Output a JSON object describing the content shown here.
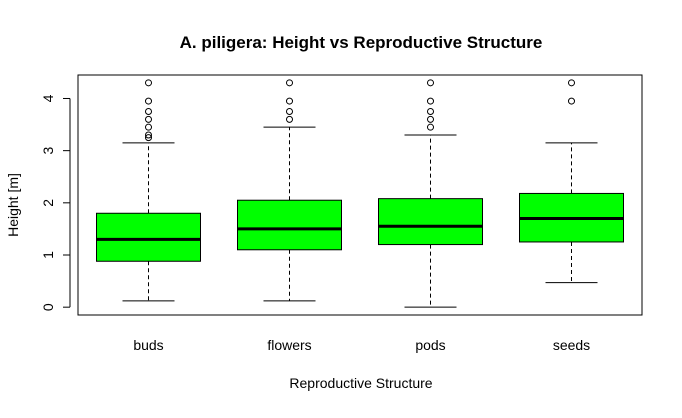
{
  "chart_data": {
    "type": "boxplot",
    "title": "A. piligera: Height vs Reproductive Structure",
    "xlabel": "Reproductive Structure",
    "ylabel": "Height [m]",
    "ylim": [
      -0.15,
      4.45
    ],
    "yticks": [
      "0",
      "1",
      "2",
      "3",
      "4"
    ],
    "box_color": "#00ff00",
    "categories": [
      "buds",
      "flowers",
      "pods",
      "seeds"
    ],
    "boxes": [
      {
        "category": "buds",
        "whisker_low": 0.12,
        "q1": 0.88,
        "median": 1.3,
        "q3": 1.8,
        "whisker_high": 3.15,
        "outliers": [
          3.25,
          3.3,
          3.45,
          3.6,
          3.75,
          3.95,
          4.3
        ]
      },
      {
        "category": "flowers",
        "whisker_low": 0.12,
        "q1": 1.1,
        "median": 1.5,
        "q3": 2.05,
        "whisker_high": 3.45,
        "outliers": [
          3.6,
          3.75,
          3.95,
          4.3
        ]
      },
      {
        "category": "pods",
        "whisker_low": 0.0,
        "q1": 1.2,
        "median": 1.55,
        "q3": 2.08,
        "whisker_high": 3.3,
        "outliers": [
          3.45,
          3.6,
          3.75,
          3.95,
          4.3
        ]
      },
      {
        "category": "seeds",
        "whisker_low": 0.47,
        "q1": 1.25,
        "median": 1.7,
        "q3": 2.18,
        "whisker_high": 3.15,
        "outliers": [
          3.95,
          4.3
        ]
      }
    ]
  }
}
